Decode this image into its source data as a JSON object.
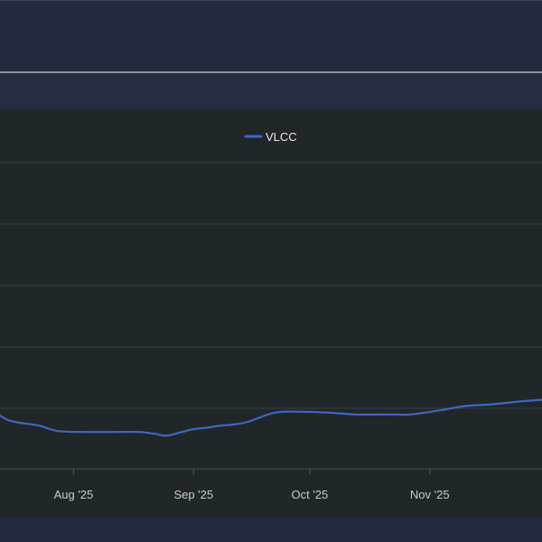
{
  "chart_data": {
    "type": "line",
    "title": "",
    "xlabel": "",
    "ylabel": "",
    "x_tick_labels": [
      "Aug '25",
      "Sep '25",
      "Oct '25",
      "Nov '25"
    ],
    "x_tick_dates": [
      "2025-08-01",
      "2025-09-01",
      "2025-10-01",
      "2025-11-01"
    ],
    "xlim": [
      "2025-07-13",
      "2025-11-30"
    ],
    "grid": true,
    "legend": "top-center",
    "series": [
      {
        "name": "VLCC",
        "color": "#3f67c2",
        "x": [
          "2025-07-13",
          "2025-07-15",
          "2025-07-18",
          "2025-07-23",
          "2025-07-28",
          "2025-08-04",
          "2025-08-11",
          "2025-08-18",
          "2025-08-22",
          "2025-08-25",
          "2025-08-29",
          "2025-09-01",
          "2025-09-05",
          "2025-09-08",
          "2025-09-11",
          "2025-09-15",
          "2025-09-22",
          "2025-09-29",
          "2025-10-06",
          "2025-10-13",
          "2025-10-20",
          "2025-10-23",
          "2025-10-27",
          "2025-11-03",
          "2025-11-10",
          "2025-11-17",
          "2025-11-24",
          "2025-11-30"
        ],
        "values": [
          0.58,
          0.53,
          0.5,
          0.47,
          0.41,
          0.4,
          0.4,
          0.4,
          0.38,
          0.36,
          0.4,
          0.43,
          0.45,
          0.47,
          0.48,
          0.51,
          0.61,
          0.62,
          0.61,
          0.59,
          0.59,
          0.59,
          0.59,
          0.63,
          0.68,
          0.7,
          0.73,
          0.75
        ]
      }
    ]
  }
}
